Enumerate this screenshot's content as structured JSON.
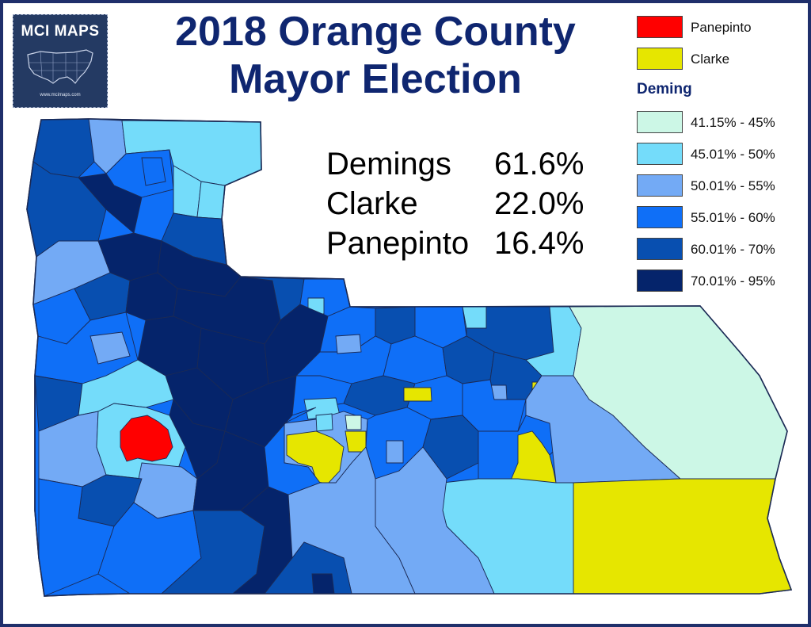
{
  "title": {
    "line1": "2018 Orange County",
    "line2": "Mayor Election"
  },
  "logo": {
    "text": "MCI MAPS",
    "url": "www.mcimaps.com"
  },
  "results": [
    {
      "candidate": "Demings",
      "share": "61.6%"
    },
    {
      "candidate": "Clarke",
      "share": "22.0%"
    },
    {
      "candidate": "Panepinto",
      "share": "16.4%"
    }
  ],
  "legend": {
    "winners": [
      {
        "label": "Panepinto",
        "color": "#ff0000"
      },
      {
        "label": "Clarke",
        "color": "#e6e600"
      }
    ],
    "heading": "Deming",
    "ranges": [
      {
        "label": "41.15% - 45%",
        "color": "#ccf7e6"
      },
      {
        "label": "45.01% - 50%",
        "color": "#74dcfa"
      },
      {
        "label": "50.01% - 55%",
        "color": "#73aaf5"
      },
      {
        "label": "55.01% - 60%",
        "color": "#0f6ff7"
      },
      {
        "label": "60.01% - 70%",
        "color": "#084fb0"
      },
      {
        "label": "70.01% - 95%",
        "color": "#05246b"
      }
    ]
  },
  "colors": {
    "frame": "#1f2f6b",
    "title": "#0f2670",
    "precinct_border": "#1b2a55"
  }
}
